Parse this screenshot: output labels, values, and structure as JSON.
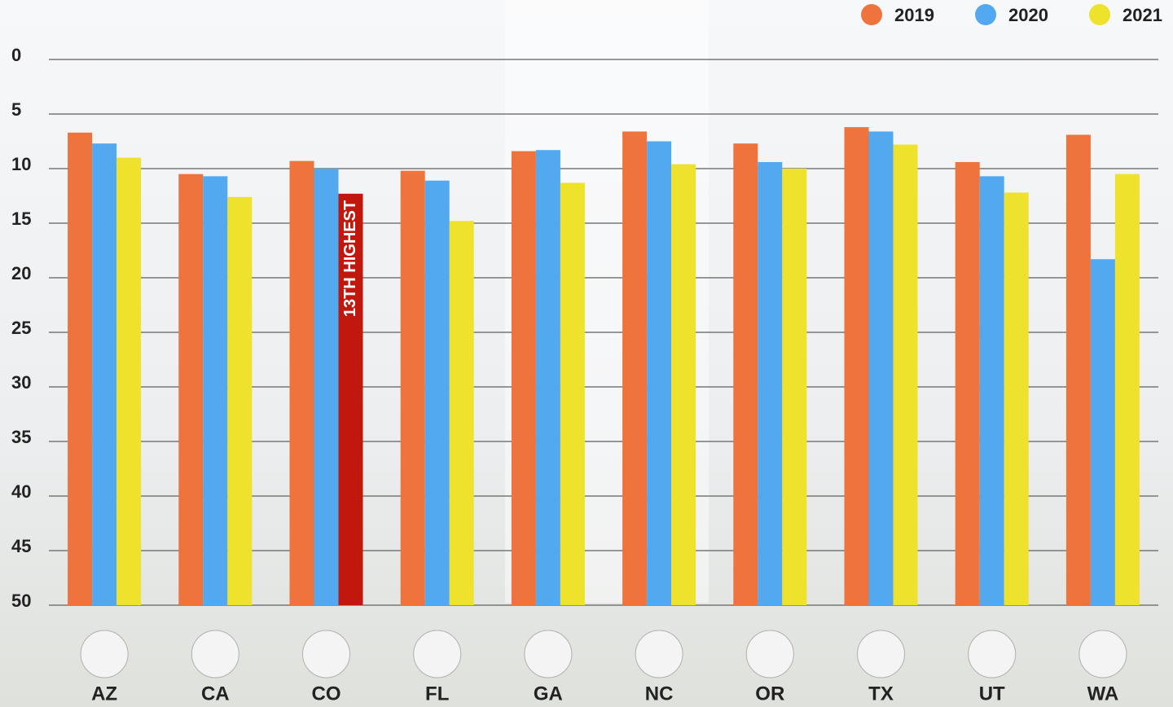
{
  "chart_data": {
    "type": "bar",
    "categories": [
      "AZ",
      "CA",
      "CO",
      "FL",
      "GA",
      "NC",
      "OR",
      "TX",
      "UT",
      "WA"
    ],
    "series": [
      {
        "name": "2019",
        "color": "#ee733c",
        "values": [
          6.7,
          10.5,
          9.3,
          10.2,
          8.4,
          6.6,
          7.7,
          6.2,
          9.4,
          6.9
        ]
      },
      {
        "name": "2020",
        "color": "#52a9f0",
        "values": [
          7.7,
          10.7,
          10.0,
          11.1,
          8.3,
          7.5,
          9.4,
          6.6,
          10.7,
          18.3
        ]
      },
      {
        "name": "2021",
        "color": "#eee22c",
        "values": [
          9.0,
          12.6,
          12.3,
          14.8,
          11.3,
          9.6,
          10.0,
          7.8,
          12.2,
          10.5
        ]
      }
    ],
    "ylim": [
      0,
      50
    ],
    "yticks": [
      0,
      5,
      10,
      15,
      20,
      25,
      30,
      35,
      40,
      45,
      50
    ],
    "inverted": true,
    "grid": true,
    "legend_position": "top-right",
    "annotation": {
      "text": "13TH HIGHEST",
      "category": "CO",
      "series": "2021",
      "color": "#c0180c"
    }
  }
}
